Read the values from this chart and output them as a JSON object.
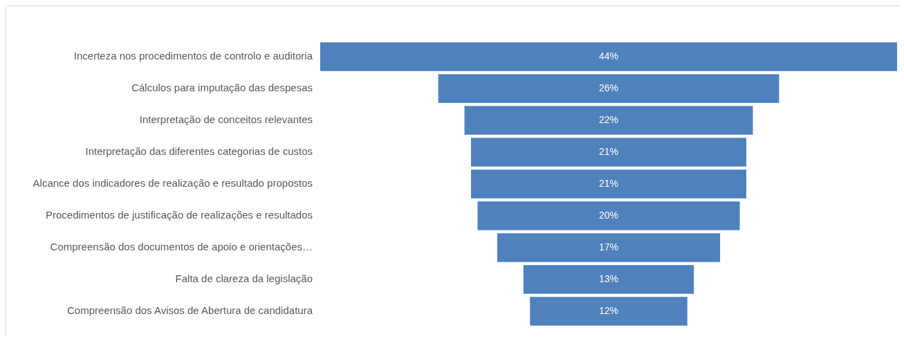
{
  "chart_data": {
    "type": "other",
    "categories": [
      "Incerteza nos procedimentos de controlo e auditoria",
      "Cálculos para imputação das despesas",
      "Interpretação de conceitos relevantes",
      "Interpretação das diferentes categorias de custos",
      "Alcance dos indicadores de realização e resultado propostos",
      "Procedimentos de justificação de realizações e resultados",
      "Compreensão dos documentos de apoio e orientações…",
      "Falta de clareza da legislação",
      "Compreensão dos Avisos de Abertura de candidatura"
    ],
    "values": [
      44,
      26,
      22,
      21,
      21,
      20,
      17,
      13,
      12
    ],
    "value_labels": [
      "44%",
      "26%",
      "22%",
      "21%",
      "21%",
      "20%",
      "17%",
      "13%",
      "12%"
    ],
    "color": "#4f81bd"
  }
}
